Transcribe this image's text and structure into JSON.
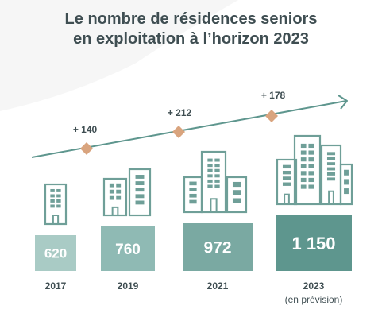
{
  "chart_data": {
    "type": "bar",
    "title_lines": [
      "Le nombre de résidences seniors",
      "en exploitation à l’horizon 2023"
    ],
    "categories": [
      "2017",
      "2019",
      "2021",
      "2023"
    ],
    "category_notes": [
      "",
      "",
      "",
      "(en prévision)"
    ],
    "values": [
      620,
      760,
      972,
      1150
    ],
    "value_labels": [
      "620",
      "760",
      "972",
      "1 150"
    ],
    "increments": [
      "+ 140",
      "+ 212",
      "+ 178"
    ],
    "colors": [
      "#a9cbc5",
      "#8fbab4",
      "#7aa9a2",
      "#5e968e"
    ],
    "trend_color": "#5e968e",
    "marker_color": "#d9a47e",
    "icon_color": "#6f9f98"
  }
}
